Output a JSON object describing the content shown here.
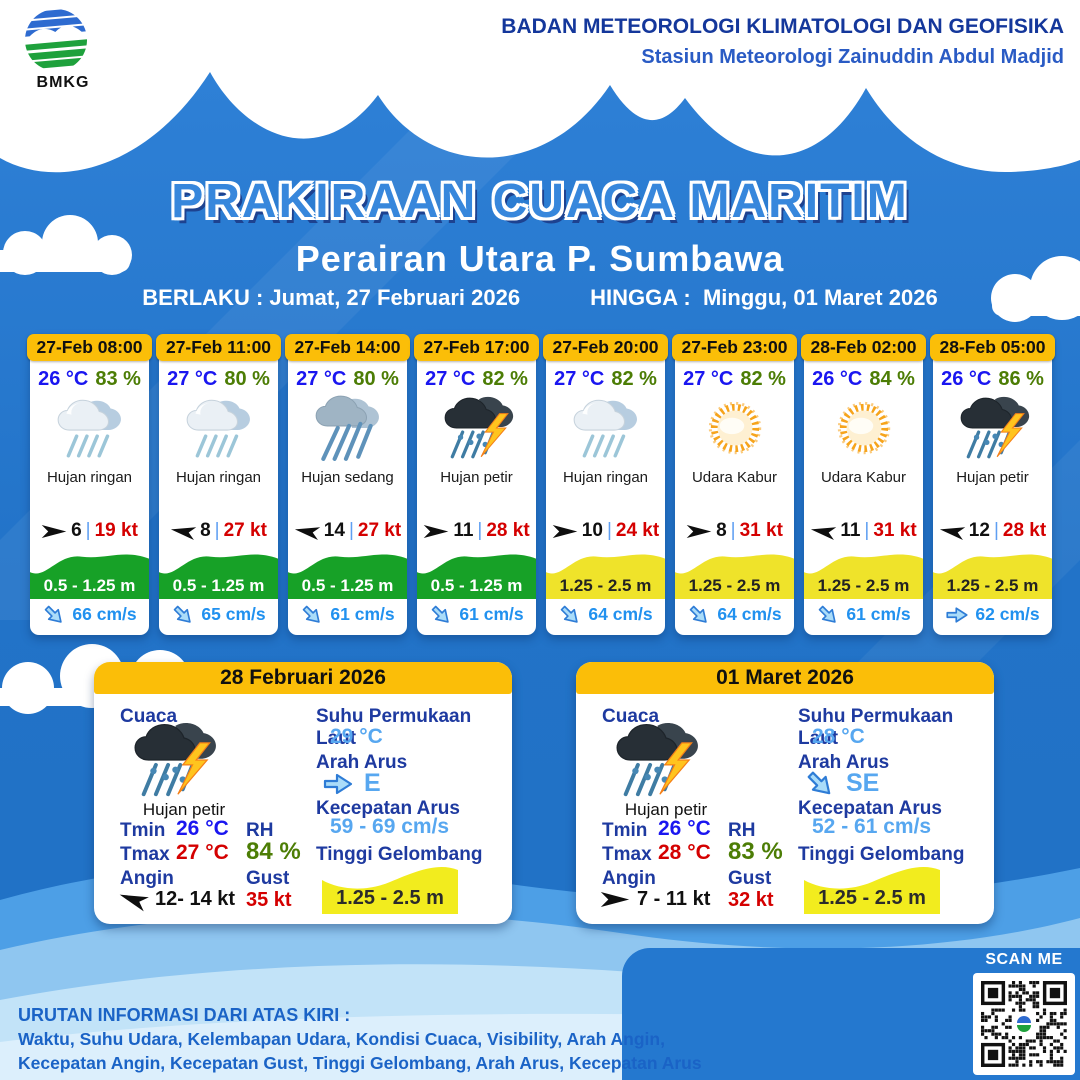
{
  "header": {
    "logo_text": "BMKG",
    "agency_line1": "BADAN METEOROLOGI KLIMATOLOGI DAN GEOFISIKA",
    "agency_line2": "Stasiun Meteorologi Zainuddin Abdul Madjid"
  },
  "title": {
    "main": "PRAKIRAAN CUACA MARITIM",
    "subtitle": "Perairan Utara P. Sumbawa",
    "valid_from_label": "BERLAKU :",
    "valid_from": "Jumat, 27 Februari 2026",
    "valid_to_label": "HINGGA :",
    "valid_to": "Minggu, 01 Maret 2026"
  },
  "labels": {
    "sep": "|",
    "cuaca": "Cuaca",
    "tmin": "Tmin",
    "tmax": "Tmax",
    "angin": "Angin",
    "rh": "RH",
    "gust": "Gust",
    "sst": "Suhu Permukaan Laut",
    "arah_arus": "Arah Arus",
    "kecepatan_arus": "Kecepatan Arus",
    "tinggi_gelombang": "Tinggi Gelombang"
  },
  "hourly": [
    {
      "time": "27-Feb 08:00",
      "temp": "26 °C",
      "humidity": "83 %",
      "icon": "i-rain-light",
      "condition": "Hujan ringan",
      "wind_speed": "6",
      "wind_gust": "19 kt",
      "wind_dir_deg": 0,
      "wave_range": "0.5 - 1.25 m",
      "wave_level": "green",
      "current_speed": "66 cm/s",
      "current_dir_deg": 45
    },
    {
      "time": "27-Feb 11:00",
      "temp": "27 °C",
      "humidity": "80 %",
      "icon": "i-rain-light",
      "condition": "Hujan ringan",
      "wind_speed": "8",
      "wind_gust": "27 kt",
      "wind_dir_deg": 190,
      "wave_range": "0.5 - 1.25 m",
      "wave_level": "green",
      "current_speed": "65 cm/s",
      "current_dir_deg": 45
    },
    {
      "time": "27-Feb 14:00",
      "temp": "27 °C",
      "humidity": "80 %",
      "icon": "i-rain-moderate",
      "condition": "Hujan sedang",
      "wind_speed": "14",
      "wind_gust": "27 kt",
      "wind_dir_deg": 190,
      "wave_range": "0.5 - 1.25 m",
      "wave_level": "green",
      "current_speed": "61 cm/s",
      "current_dir_deg": 45
    },
    {
      "time": "27-Feb 17:00",
      "temp": "27 °C",
      "humidity": "82 %",
      "icon": "i-thunder",
      "condition": "Hujan petir",
      "wind_speed": "11",
      "wind_gust": "28 kt",
      "wind_dir_deg": 0,
      "wave_range": "0.5 - 1.25 m",
      "wave_level": "green",
      "current_speed": "61 cm/s",
      "current_dir_deg": 45
    },
    {
      "time": "27-Feb 20:00",
      "temp": "27 °C",
      "humidity": "82 %",
      "icon": "i-rain-light",
      "condition": "Hujan ringan",
      "wind_speed": "10",
      "wind_gust": "24 kt",
      "wind_dir_deg": 0,
      "wave_range": "1.25 - 2.5 m",
      "wave_level": "yellow",
      "current_speed": "64 cm/s",
      "current_dir_deg": 45
    },
    {
      "time": "27-Feb 23:00",
      "temp": "27 °C",
      "humidity": "82 %",
      "icon": "i-haze",
      "condition": "Udara Kabur",
      "wind_speed": "8",
      "wind_gust": "31 kt",
      "wind_dir_deg": 0,
      "wave_range": "1.25 - 2.5 m",
      "wave_level": "yellow",
      "current_speed": "64 cm/s",
      "current_dir_deg": 45
    },
    {
      "time": "28-Feb 02:00",
      "temp": "26 °C",
      "humidity": "84 %",
      "icon": "i-haze",
      "condition": "Udara Kabur",
      "wind_speed": "11",
      "wind_gust": "31 kt",
      "wind_dir_deg": 190,
      "wave_range": "1.25 - 2.5 m",
      "wave_level": "yellow",
      "current_speed": "61 cm/s",
      "current_dir_deg": 45
    },
    {
      "time": "28-Feb 05:00",
      "temp": "26 °C",
      "humidity": "86 %",
      "icon": "i-thunder",
      "condition": "Hujan petir",
      "wind_speed": "12",
      "wind_gust": "28 kt",
      "wind_dir_deg": 190,
      "wave_range": "1.25 - 2.5 m",
      "wave_level": "yellow",
      "current_speed": "62 cm/s",
      "current_dir_deg": 0
    }
  ],
  "daily": [
    {
      "date": "28 Februari 2026",
      "icon": "i-thunder",
      "condition": "Hujan petir",
      "tmin": "26 °C",
      "tmax": "27 °C",
      "rh": "84 %",
      "wind_range": "12- 14 kt",
      "wind_dir_deg": 200,
      "gust": "35 kt",
      "sst": "29 °C",
      "current_dir": "E",
      "current_dir_deg": 0,
      "current_speed": "59 - 69 cm/s",
      "wave_range": "1.25 - 2.5 m"
    },
    {
      "date": "01 Maret 2026",
      "icon": "i-thunder",
      "condition": "Hujan petir",
      "tmin": "26 °C",
      "tmax": "28 °C",
      "rh": "83 %",
      "wind_range": "7 - 11 kt",
      "wind_dir_deg": 0,
      "gust": "32 kt",
      "sst": "28 °C",
      "current_dir": "SE",
      "current_dir_deg": 45,
      "current_speed": "52 - 61 cm/s",
      "wave_range": "1.25 - 2.5 m"
    }
  ],
  "footer": {
    "heading": "URUTAN INFORMASI DARI ATAS KIRI :",
    "line1": "Waktu, Suhu Udara, Kelembapan Udara, Kondisi Cuaca, Visibility, Arah Angin,",
    "line2": "Kecepatan Angin, Kecepatan Gust, Tinggi Gelombang, Arah Arus, Kecepatan Arus",
    "scan_label": "SCAN ME"
  },
  "colors": {
    "bg_blue": "#2273C8",
    "accent_yellow": "#FBBE08",
    "wave_green": "#17A127",
    "wave_yellow": "#EFE32A",
    "daily_wave_yellow": "#F2EC1E",
    "temp_blue": "#1A16F0",
    "humidity_green": "#4C7D05",
    "alert_red": "#D40000",
    "current_blue": "#2191EF",
    "label_navy": "#1E3AA0",
    "value_lightblue": "#57A7F0",
    "panel_blue": "#2478CF"
  }
}
